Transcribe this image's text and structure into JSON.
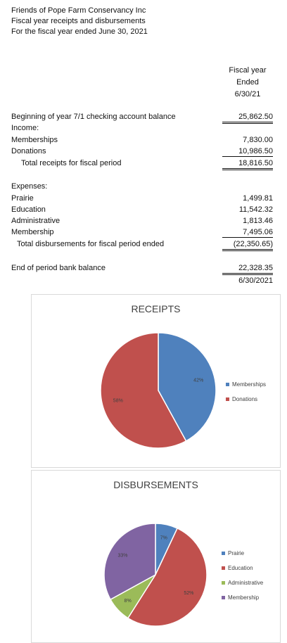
{
  "header": {
    "org": "Friends of Pope Farm Conservancy Inc",
    "subtitle": "Fiscal year receipts and disbursements",
    "period": "For the fiscal year ended June 30, 2021"
  },
  "column_header": {
    "line1": "Fiscal year",
    "line2": "Ended",
    "line3": "6/30/21"
  },
  "rows": {
    "beginning": {
      "label": "Beginning of year 7/1 checking account balance",
      "value": "25,862.50"
    },
    "income_label": "Income:",
    "memberships": {
      "label": "Memberships",
      "value": "7,830.00"
    },
    "donations": {
      "label": "Donations",
      "value": "10,986.50"
    },
    "total_receipts": {
      "label": "Total receipts for fiscal period",
      "value": "18,816.50"
    },
    "expenses_label": "Expenses:",
    "prairie": {
      "label": "Prairie",
      "value": "1,499.81"
    },
    "education": {
      "label": "Education",
      "value": "11,542.32"
    },
    "administrative": {
      "label": "Administrative",
      "value": "1,813.46"
    },
    "membership": {
      "label": "Membership",
      "value": "7,495.06"
    },
    "total_disbursements": {
      "label": "Total disbursements for fiscal period ended",
      "value": "(22,350.65)"
    },
    "end_balance": {
      "label": "End of period bank balance",
      "value": "22,328.35",
      "date": "6/30/2021"
    }
  },
  "chart_data": [
    {
      "type": "pie",
      "title": "RECEIPTS",
      "categories": [
        "Memberships",
        "Donations"
      ],
      "values": [
        42,
        58
      ],
      "labels": [
        "42%",
        "58%"
      ],
      "colors": [
        "#4f81bd",
        "#c0504d"
      ],
      "legend": "right"
    },
    {
      "type": "pie",
      "title": "DISBURSEMENTS",
      "categories": [
        "Prairie",
        "Education",
        "Administrative",
        "Membership"
      ],
      "values": [
        7,
        52,
        8,
        33
      ],
      "labels": [
        "7%",
        "52%",
        "8%",
        "33%"
      ],
      "colors": [
        "#4f81bd",
        "#c0504d",
        "#9bbb59",
        "#8064a2"
      ],
      "legend": "right"
    }
  ]
}
